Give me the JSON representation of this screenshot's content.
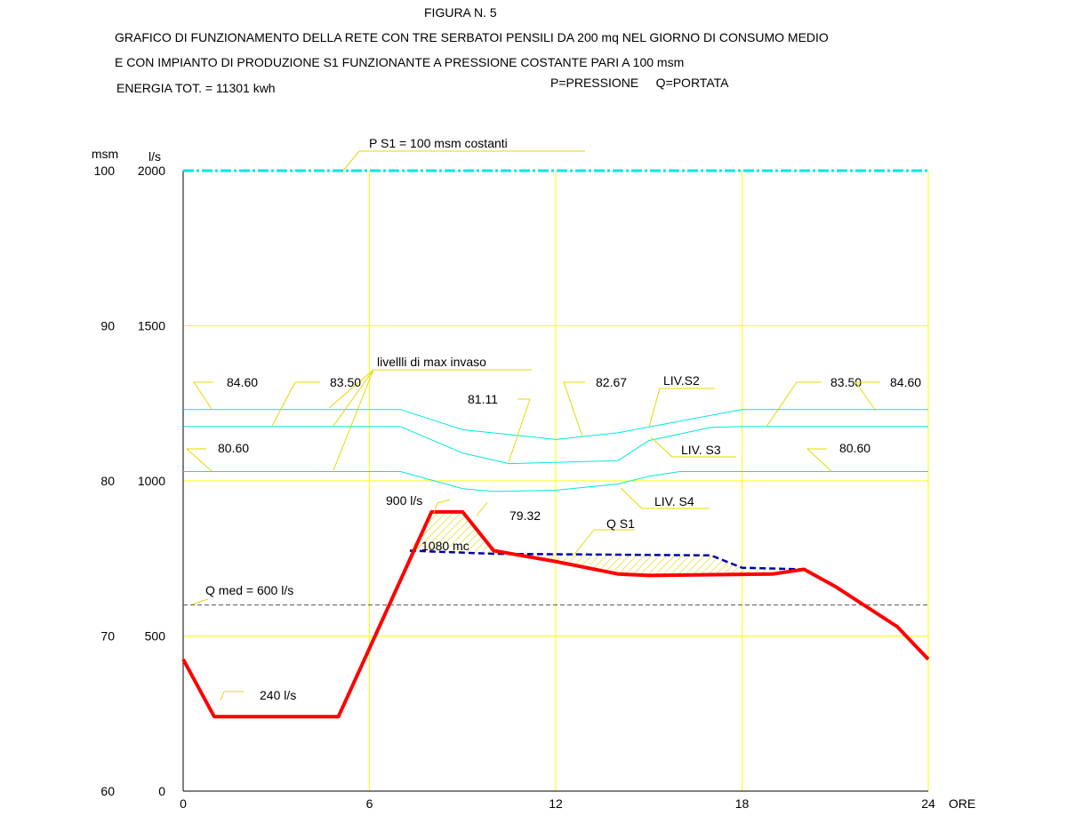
{
  "header": {
    "figure": "FIGURA N. 5",
    "line1": "GRAFICO DI FUNZIONAMENTO DELLA RETE CON TRE SERBATOI PENSILI DA 200 mq NEL GIORNO DI CONSUMO MEDIO",
    "line2": "E CON IMPIANTO DI PRODUZIONE S1 FUNZIONANTE A PRESSIONE COSTANTE PARI A 100 msm",
    "energy": "ENERGIA TOT. = 11301 kwh",
    "legend_text": "P=PRESSIONE     Q=PORTATA"
  },
  "axes": {
    "left_unit": "msm",
    "right_unit": "l/s",
    "x_unit": "ORE",
    "msm_ticks": [
      "100",
      "90",
      "80",
      "70",
      "60"
    ],
    "ls_ticks": [
      "2000",
      "1500",
      "1000",
      "500",
      "0"
    ],
    "x_ticks": [
      "0",
      "6",
      "12",
      "18",
      "24"
    ],
    "msm_values": [
      100,
      90,
      80,
      70,
      60
    ],
    "ls_values": [
      2000,
      1500,
      1000,
      500,
      0
    ],
    "x_values": [
      0,
      6,
      12,
      18,
      24
    ]
  },
  "colors": {
    "grid": "#ffff00",
    "leader": "#e6d800",
    "level": "#00e5e5",
    "pressure": "#00e5e5",
    "flow": "#ff0000",
    "qs1": "#0000aa",
    "qmed": "#555555",
    "axis": "#000000"
  },
  "chart_data": {
    "type": "line",
    "title": "GRAFICO DI FUNZIONAMENTO DELLA RETE CON TRE SERBATOI PENSILI DA 200 mq NEL GIORNO DI CONSUMO MEDIO",
    "xlabel": "ORE",
    "ylabel_left": "msm",
    "ylabel_right": "l/s",
    "xlim": [
      0,
      24
    ],
    "ylim_msm": [
      60,
      100
    ],
    "ylim_ls": [
      0,
      2000
    ],
    "grid": true,
    "series": [
      {
        "name": "P S1 = 100 msm costanti",
        "axis": "msm",
        "x": [
          0,
          24
        ],
        "y": [
          100,
          100
        ]
      },
      {
        "name": "LIV.S2",
        "axis": "msm",
        "x": [
          0,
          7,
          9,
          12,
          14,
          18,
          24
        ],
        "y": [
          84.6,
          84.6,
          83.3,
          82.67,
          83.1,
          84.6,
          84.6
        ]
      },
      {
        "name": "LIV. S3",
        "axis": "msm",
        "x": [
          0,
          7,
          9,
          10.5,
          14,
          15,
          17,
          18,
          24
        ],
        "y": [
          83.5,
          83.5,
          81.8,
          81.11,
          81.3,
          82.6,
          83.45,
          83.5,
          83.5
        ]
      },
      {
        "name": "LIV. S4",
        "axis": "msm",
        "x": [
          0,
          7,
          9,
          10,
          12,
          14,
          15,
          16,
          24
        ],
        "y": [
          80.6,
          80.6,
          79.5,
          79.32,
          79.4,
          79.8,
          80.3,
          80.6,
          80.6
        ]
      },
      {
        "name": "Q S1",
        "axis": "ls",
        "x": [
          7.3,
          10,
          17,
          18,
          20
        ],
        "y": [
          775,
          765,
          760,
          720,
          715
        ]
      },
      {
        "axis": "ls",
        "x": [
          0,
          1,
          5,
          8,
          9,
          10,
          12,
          14,
          15,
          19,
          20,
          21,
          23,
          24
        ],
        "y": [
          425,
          240,
          240,
          900,
          900,
          775,
          740,
          700,
          695,
          700,
          715,
          660,
          530,
          425
        ]
      },
      {
        "name": "Q med = 600 l/s",
        "axis": "ls",
        "x": [
          0,
          24
        ],
        "y": [
          600,
          600
        ]
      }
    ],
    "annotations": {
      "pressure": "P S1 = 100 msm costanti",
      "max_invaso": "livellli di max invaso",
      "l_8460_left": "84.60",
      "l_8350_left": "83.50",
      "l_8060_left": "80.60",
      "l_8111": "81.11",
      "l_8267": "82.67",
      "l_liv_s2": "LIV.S2",
      "l_8350_right": "83.50",
      "l_8460_right": "84.60",
      "l_liv_s3": "LIV. S3",
      "l_8060_right": "80.60",
      "l_900": "900 l/s",
      "l_7932": "79.32",
      "l_liv_s4": "LIV. S4",
      "l_qs1": "Q S1",
      "l_1080": "1080 mc",
      "l_qmed": "Q med = 600 l/s",
      "l_240": "240 l/s"
    }
  }
}
